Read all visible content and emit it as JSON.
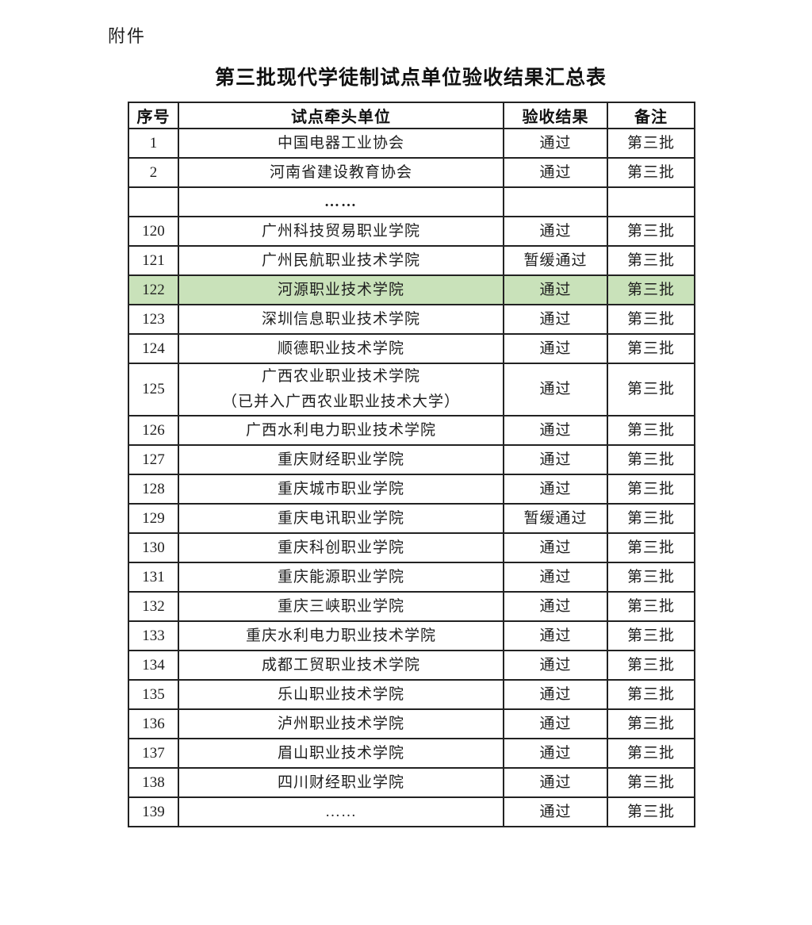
{
  "page": {
    "attachment_label": "附件",
    "title": "第三批现代学徒制试点单位验收结果汇总表"
  },
  "table": {
    "headers": [
      "序号",
      "试点牵头单位",
      "验收结果",
      "备注"
    ],
    "highlight_color": "#c9e2ba",
    "rows": [
      {
        "no": "1",
        "unit": "中国电器工业协会",
        "result": "通过",
        "note": "第三批"
      },
      {
        "no": "2",
        "unit": "河南省建设教育协会",
        "result": "通过",
        "note": "第三批"
      },
      {
        "no": "",
        "unit": "……",
        "result": "",
        "note": "",
        "filler": true
      },
      {
        "no": "120",
        "unit": "广州科技贸易职业学院",
        "result": "通过",
        "note": "第三批"
      },
      {
        "no": "121",
        "unit": "广州民航职业技术学院",
        "result": "暂缓通过",
        "note": "第三批"
      },
      {
        "no": "122",
        "unit": "河源职业技术学院",
        "result": "通过",
        "note": "第三批",
        "highlight": true
      },
      {
        "no": "123",
        "unit": "深圳信息职业技术学院",
        "result": "通过",
        "note": "第三批"
      },
      {
        "no": "124",
        "unit": "顺德职业技术学院",
        "result": "通过",
        "note": "第三批"
      },
      {
        "no": "125",
        "unit": "广西农业职业技术学院\n（已并入广西农业职业技术大学）",
        "result": "通过",
        "note": "第三批"
      },
      {
        "no": "126",
        "unit": "广西水利电力职业技术学院",
        "result": "通过",
        "note": "第三批"
      },
      {
        "no": "127",
        "unit": "重庆财经职业学院",
        "result": "通过",
        "note": "第三批"
      },
      {
        "no": "128",
        "unit": "重庆城市职业学院",
        "result": "通过",
        "note": "第三批"
      },
      {
        "no": "129",
        "unit": "重庆电讯职业学院",
        "result": "暂缓通过",
        "note": "第三批"
      },
      {
        "no": "130",
        "unit": "重庆科创职业学院",
        "result": "通过",
        "note": "第三批"
      },
      {
        "no": "131",
        "unit": "重庆能源职业学院",
        "result": "通过",
        "note": "第三批"
      },
      {
        "no": "132",
        "unit": "重庆三峡职业学院",
        "result": "通过",
        "note": "第三批"
      },
      {
        "no": "133",
        "unit": "重庆水利电力职业技术学院",
        "result": "通过",
        "note": "第三批"
      },
      {
        "no": "134",
        "unit": "成都工贸职业技术学院",
        "result": "通过",
        "note": "第三批"
      },
      {
        "no": "135",
        "unit": "乐山职业技术学院",
        "result": "通过",
        "note": "第三批"
      },
      {
        "no": "136",
        "unit": "泸州职业技术学院",
        "result": "通过",
        "note": "第三批"
      },
      {
        "no": "137",
        "unit": "眉山职业技术学院",
        "result": "通过",
        "note": "第三批"
      },
      {
        "no": "138",
        "unit": "四川财经职业学院",
        "result": "通过",
        "note": "第三批"
      },
      {
        "no": "139",
        "unit": "……",
        "result": "通过",
        "note": "第三批"
      }
    ]
  }
}
